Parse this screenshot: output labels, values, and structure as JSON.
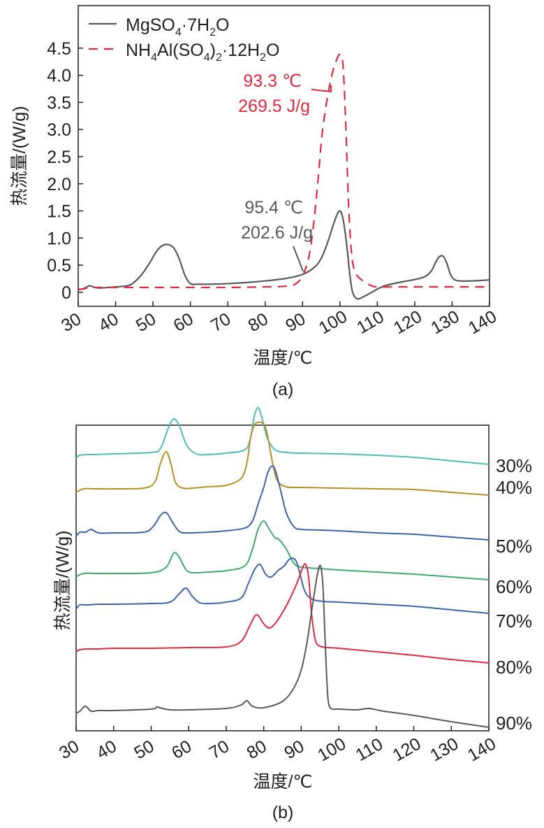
{
  "chart_data": [
    {
      "type": "line",
      "panel_label": "(a)",
      "xlabel": "温度/℃",
      "ylabel": "热流量/(W/g)",
      "xlim": [
        30,
        140
      ],
      "ylim": [
        -0.15,
        4.7
      ],
      "xticks": [
        "30",
        "40",
        "50",
        "60",
        "70",
        "80",
        "90",
        "100",
        "110",
        "120",
        "130",
        "140"
      ],
      "yticks": [
        "0",
        "0.5",
        "1.0",
        "1.5",
        "2.0",
        "2.5",
        "3.0",
        "3.5",
        "4.0",
        "4.5"
      ],
      "legend_position": "top-left",
      "series": [
        {
          "name": "MgSO₄·7H₂O",
          "legend": {
            "base": "MgSO",
            "s1": "4",
            "mid": "·7H",
            "s2": "2",
            "tail": "O"
          },
          "style": "solid",
          "color": "#58595b",
          "x": [
            30,
            31.5,
            33,
            34.5,
            36,
            38,
            40,
            42,
            44,
            45.5,
            47,
            49,
            51,
            52.5,
            54,
            55.5,
            57,
            58.5,
            60,
            62,
            65,
            70,
            75,
            80,
            85,
            88,
            90,
            92,
            94,
            95.5,
            97,
            98.5,
            99.8,
            100.8,
            101.8,
            102.6,
            103.3,
            104.2,
            105,
            106,
            108,
            110,
            112,
            115,
            118,
            121,
            123,
            124.5,
            125.5,
            126.5,
            127.5,
            128.5,
            129.5,
            130.5,
            132,
            135,
            138,
            140
          ],
          "values": [
            0.05,
            0.07,
            0.12,
            0.09,
            0.08,
            0.09,
            0.1,
            0.11,
            0.14,
            0.22,
            0.33,
            0.53,
            0.76,
            0.86,
            0.88,
            0.82,
            0.62,
            0.32,
            0.16,
            0.15,
            0.15,
            0.16,
            0.18,
            0.21,
            0.25,
            0.29,
            0.33,
            0.4,
            0.52,
            0.7,
            0.98,
            1.3,
            1.5,
            1.36,
            0.88,
            0.35,
            0.02,
            -0.1,
            -0.12,
            -0.09,
            -0.02,
            0.06,
            0.12,
            0.17,
            0.21,
            0.25,
            0.3,
            0.4,
            0.54,
            0.65,
            0.67,
            0.55,
            0.34,
            0.24,
            0.21,
            0.21,
            0.22,
            0.23
          ]
        },
        {
          "name": "NH₄Al(SO₄)₂·12H₂O",
          "legend": {
            "p1": "NH",
            "s1": "4",
            "p2": "Al(SO",
            "s2": "4",
            "p3": ")",
            "s3": "2",
            "p4": "·12H",
            "s4": "2",
            "p5": "O"
          },
          "style": "dashed",
          "color": "#e2283e",
          "x": [
            30,
            33,
            35,
            40,
            50,
            60,
            70,
            80,
            85,
            88,
            90,
            91.5,
            92.5,
            93.5,
            94.3,
            95.2,
            96.2,
            97.2,
            98.2,
            99.2,
            100,
            100.8,
            101.5,
            102.2,
            103,
            104,
            106,
            108.5,
            110,
            115,
            120,
            125,
            130,
            135,
            140
          ],
          "values": [
            0.05,
            0.08,
            0.09,
            0.09,
            0.09,
            0.09,
            0.09,
            0.1,
            0.11,
            0.15,
            0.3,
            0.6,
            1.0,
            1.6,
            2.2,
            2.9,
            3.4,
            3.8,
            4.1,
            4.3,
            4.38,
            4.2,
            3.2,
            1.8,
            0.8,
            0.38,
            0.22,
            0.12,
            0.1,
            0.1,
            0.1,
            0.1,
            0.1,
            0.1,
            0.1
          ]
        }
      ],
      "annotations": [
        {
          "line1": "93.3 ℃",
          "line2": "269.5 J/g",
          "color": "#e2283e",
          "target_x": 97.5,
          "target_y": 3.3
        },
        {
          "line1": "95.4 ℃",
          "line2": "202.6 J/g",
          "color": "#58595b",
          "target_x": 89,
          "target_y": 0.3
        }
      ]
    },
    {
      "type": "line",
      "panel_label": "(b)",
      "xlabel": "温度/℃",
      "ylabel": "热流量/(W/g)",
      "xlim": [
        30,
        140
      ],
      "xticks": [
        "30",
        "40",
        "50",
        "60",
        "70",
        "80",
        "90",
        "100",
        "110",
        "120",
        "130",
        "140"
      ],
      "series": [
        {
          "name": "30%",
          "color": "#4fbcb8",
          "baseline": 0,
          "x": [
            30,
            31,
            33,
            35,
            40,
            50,
            52.5,
            54.5,
            56,
            57.5,
            59.5,
            62,
            65,
            70,
            75,
            76.5,
            77.5,
            78.5,
            79.5,
            81,
            83,
            86,
            90,
            100,
            110,
            120,
            130,
            140
          ],
          "values": [
            0.0,
            0.04,
            0.05,
            0.05,
            0.06,
            0.08,
            0.14,
            0.42,
            0.56,
            0.46,
            0.18,
            0.06,
            0.05,
            0.07,
            0.12,
            0.3,
            0.6,
            0.72,
            0.58,
            0.28,
            0.12,
            0.08,
            0.07,
            0.06,
            0.04,
            0.01,
            -0.04,
            -0.09
          ]
        },
        {
          "name": "40%",
          "color": "#b78e23",
          "baseline": 1,
          "x": [
            30,
            32,
            35,
            40,
            48,
            51,
            52.5,
            54,
            55.3,
            56.5,
            58.5,
            61,
            65,
            70,
            74,
            75.5,
            76.5,
            77.5,
            78.5,
            80,
            81,
            82,
            83.5,
            86,
            90,
            100,
            110,
            120,
            130,
            140
          ],
          "values": [
            0.0,
            0.05,
            0.05,
            0.05,
            0.06,
            0.15,
            0.42,
            0.58,
            0.4,
            0.14,
            0.06,
            0.06,
            0.08,
            0.1,
            0.2,
            0.42,
            0.78,
            0.96,
            1.0,
            0.98,
            0.82,
            0.52,
            0.18,
            0.08,
            0.07,
            0.06,
            0.05,
            0.04,
            0.0,
            -0.04
          ]
        },
        {
          "name": "50%",
          "color": "#3e63ae",
          "baseline": 2,
          "x": [
            30,
            31,
            32.5,
            34,
            36,
            40,
            48,
            50.5,
            52.5,
            54,
            55.5,
            57.5,
            60,
            65,
            70,
            75,
            77,
            78.5,
            80,
            81,
            82,
            83,
            84.5,
            86,
            88,
            90,
            95,
            100,
            110,
            120,
            130,
            140
          ],
          "values": [
            0.0,
            0.06,
            0.06,
            0.1,
            0.05,
            0.05,
            0.06,
            0.14,
            0.3,
            0.34,
            0.22,
            0.07,
            0.05,
            0.06,
            0.08,
            0.12,
            0.22,
            0.46,
            0.7,
            0.9,
            1.0,
            0.96,
            0.66,
            0.34,
            0.14,
            0.1,
            0.09,
            0.08,
            0.05,
            0.03,
            -0.01,
            -0.05
          ]
        },
        {
          "name": "60%",
          "color": "#3eab6e",
          "baseline": 3,
          "x": [
            30,
            32,
            36,
            40,
            50,
            54,
            56,
            57.5,
            59.5,
            62,
            65,
            70,
            75,
            77,
            78.5,
            80,
            81.5,
            83,
            84,
            86,
            88,
            90,
            95,
            100,
            110,
            120,
            130,
            140
          ],
          "values": [
            0.0,
            0.05,
            0.05,
            0.05,
            0.06,
            0.14,
            0.34,
            0.28,
            0.09,
            0.06,
            0.07,
            0.09,
            0.16,
            0.4,
            0.68,
            0.8,
            0.68,
            0.56,
            0.54,
            0.4,
            0.2,
            0.14,
            0.12,
            0.1,
            0.07,
            0.04,
            0.0,
            -0.04
          ]
        },
        {
          "name": "70%",
          "color": "#3e63ae",
          "baseline": 4,
          "x": [
            30,
            31,
            33,
            36,
            40,
            50,
            55,
            57.5,
            59.3,
            61,
            63,
            66,
            70,
            74,
            76,
            77.5,
            79,
            80.5,
            82,
            84,
            85.5,
            87,
            88.5,
            89.5,
            91,
            93,
            96,
            100,
            110,
            120,
            130,
            140
          ],
          "values": [
            0.0,
            0.06,
            0.06,
            0.07,
            0.07,
            0.08,
            0.1,
            0.22,
            0.3,
            0.18,
            0.09,
            0.08,
            0.1,
            0.16,
            0.38,
            0.56,
            0.64,
            0.5,
            0.46,
            0.56,
            0.62,
            0.72,
            0.7,
            0.54,
            0.25,
            0.14,
            0.11,
            0.1,
            0.07,
            0.04,
            -0.01,
            -0.06
          ]
        },
        {
          "name": "80%",
          "color": "#e2283e",
          "baseline": 5,
          "x": [
            30,
            31,
            33,
            36,
            40,
            50,
            60,
            70,
            74,
            76,
            77.5,
            78.5,
            80,
            81.5,
            83,
            85,
            87,
            89,
            90.5,
            91.3,
            92,
            92.8,
            93.8,
            95,
            97,
            100,
            110,
            120,
            130,
            140
          ],
          "values": [
            0.0,
            0.03,
            0.04,
            0.04,
            0.05,
            0.05,
            0.06,
            0.07,
            0.15,
            0.34,
            0.5,
            0.52,
            0.4,
            0.34,
            0.4,
            0.56,
            0.76,
            1.0,
            1.22,
            1.24,
            1.05,
            0.52,
            0.16,
            0.08,
            0.06,
            0.05,
            0.0,
            -0.05,
            -0.11,
            -0.16
          ]
        },
        {
          "name": "90%",
          "color": "#58595b",
          "baseline": 6,
          "x": [
            30,
            31,
            32.5,
            34,
            36,
            40,
            50,
            51.5,
            53,
            55,
            60,
            70,
            74,
            75.5,
            77,
            80,
            85,
            88,
            90,
            91.5,
            92.5,
            93.5,
            94.5,
            95.2,
            95.8,
            96.4,
            97,
            97.5,
            98.5,
            100,
            105,
            108,
            112,
            120,
            130,
            140
          ],
          "values": [
            0.0,
            0.03,
            0.1,
            0.03,
            0.04,
            0.04,
            0.06,
            0.09,
            0.07,
            0.05,
            0.05,
            0.07,
            0.12,
            0.18,
            0.1,
            0.08,
            0.17,
            0.36,
            0.62,
            1.0,
            1.36,
            1.72,
            2.04,
            2.1,
            1.8,
            1.0,
            0.3,
            0.1,
            0.06,
            0.06,
            0.05,
            0.07,
            0.03,
            -0.03,
            -0.12,
            -0.2
          ]
        }
      ]
    }
  ]
}
